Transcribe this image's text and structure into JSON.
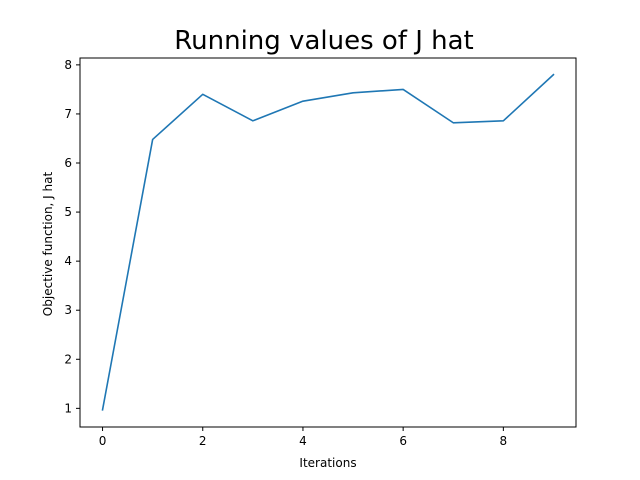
{
  "chart_data": {
    "type": "line",
    "title": "Running values of J hat",
    "xlabel": "Iterations",
    "ylabel": "Objective function, J hat",
    "x": [
      0,
      1,
      2,
      3,
      4,
      5,
      6,
      7,
      8,
      9
    ],
    "series": [
      {
        "values": [
          0.97,
          6.48,
          7.4,
          6.86,
          7.26,
          7.43,
          7.5,
          6.82,
          6.86,
          7.8
        ],
        "color": "#1f77b4"
      }
    ],
    "xlim": [
      -0.45,
      9.45
    ],
    "ylim": [
      0.62,
      8.14
    ],
    "xticks": [
      0,
      2,
      4,
      6,
      8
    ],
    "yticks": [
      1,
      2,
      3,
      4,
      5,
      6,
      7,
      8
    ],
    "grid": false,
    "legend": "none"
  }
}
